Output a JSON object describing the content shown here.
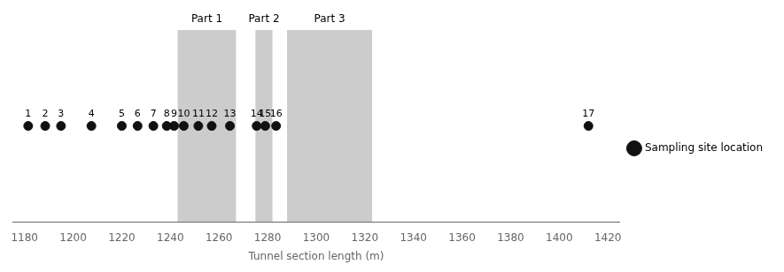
{
  "chart_data": {
    "type": "scatter",
    "xlabel": "Tunnel section length (m)",
    "xlim": [
      1175,
      1425
    ],
    "xticks": [
      1180,
      1200,
      1220,
      1240,
      1260,
      1280,
      1300,
      1320,
      1340,
      1360,
      1380,
      1400,
      1420
    ],
    "grid": false,
    "tick_labels": "x",
    "legend": "right",
    "parts": [
      {
        "label": "Part 1",
        "x": 1243,
        "width": 24,
        "color": "#cccccc"
      },
      {
        "label": "Part 2",
        "x": 1275,
        "width": 7,
        "color": "#cccccc"
      },
      {
        "label": "Part 3",
        "x": 1288,
        "width": 35,
        "color": "#cccccc"
      }
    ],
    "series": [
      {
        "name": "Sampling site location",
        "color": "#111111",
        "marker": "circle",
        "x": [
          1181.5,
          1188.5,
          1195.0,
          1207.5,
          1220.0,
          1226.5,
          1233.0,
          1238.5,
          1241.5,
          1245.5,
          1251.5,
          1257.0,
          1264.5,
          1275.5,
          1279.0,
          1283.5,
          1412.0
        ],
        "labels": [
          "1",
          "2",
          "3",
          "4",
          "5",
          "6",
          "7",
          "8",
          "9",
          "10",
          "11",
          "12",
          "13",
          "14",
          "15",
          "16",
          "17"
        ]
      }
    ]
  }
}
